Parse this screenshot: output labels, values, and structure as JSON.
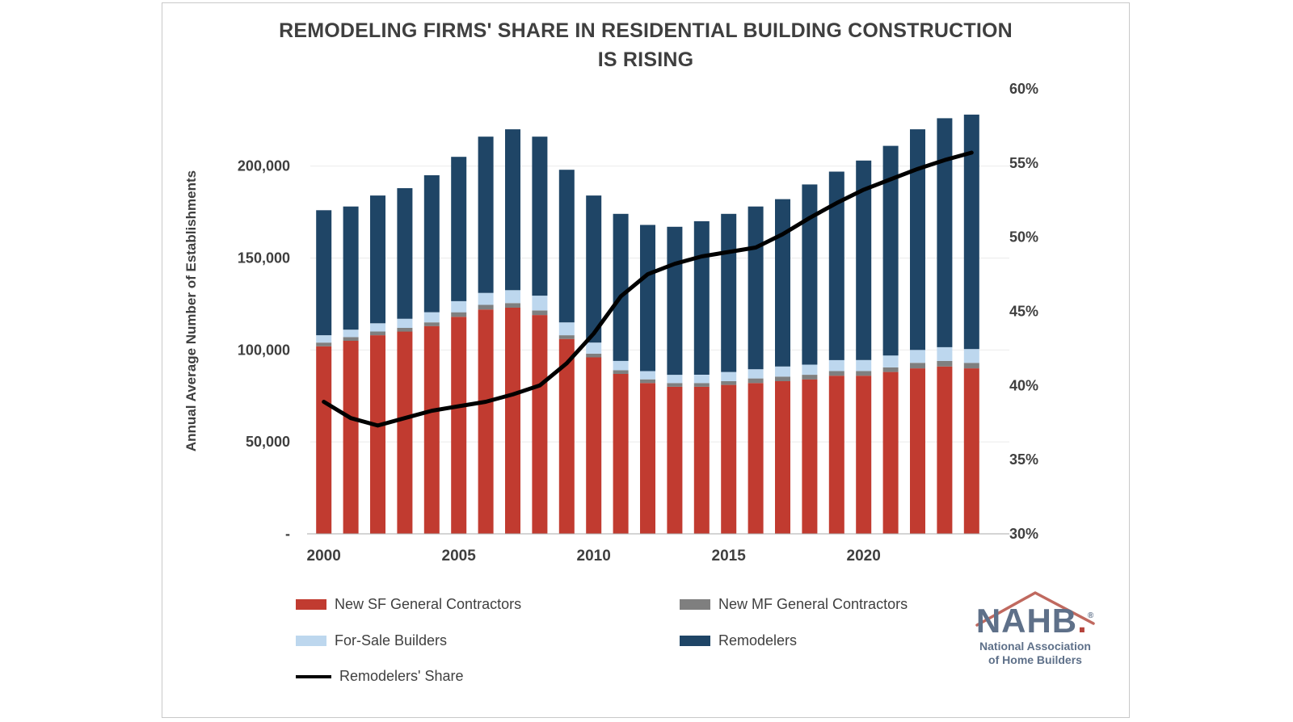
{
  "title": {
    "line1": "REMODELING FIRMS' SHARE IN RESIDENTIAL BUILDING CONSTRUCTION",
    "line2": "IS RISING"
  },
  "axes": {
    "left_label": "Annual Average Number of Establishments",
    "left_ticks": [
      {
        "value": 0,
        "label": "-"
      },
      {
        "value": 50000,
        "label": "50,000"
      },
      {
        "value": 100000,
        "label": "100,000"
      },
      {
        "value": 150000,
        "label": "150,000"
      },
      {
        "value": 200000,
        "label": "200,000"
      }
    ],
    "right_ticks": [
      {
        "value": 30,
        "label": "30%"
      },
      {
        "value": 35,
        "label": "35%"
      },
      {
        "value": 40,
        "label": "40%"
      },
      {
        "value": 45,
        "label": "45%"
      },
      {
        "value": 50,
        "label": "50%"
      },
      {
        "value": 55,
        "label": "55%"
      },
      {
        "value": 60,
        "label": "60%"
      }
    ],
    "x_ticks": [
      {
        "year": 2000,
        "label": "2000"
      },
      {
        "year": 2005,
        "label": "2005"
      },
      {
        "year": 2010,
        "label": "2010"
      },
      {
        "year": 2015,
        "label": "2015"
      },
      {
        "year": 2020,
        "label": "2020"
      }
    ]
  },
  "legend": {
    "items": [
      {
        "label": "New SF General Contractors",
        "color": "#c13b30",
        "shape": "swatch"
      },
      {
        "label": "New MF General Contractors",
        "color": "#7f7f7f",
        "shape": "swatch"
      },
      {
        "label": "For-Sale Builders",
        "color": "#bdd7ee",
        "shape": "swatch"
      },
      {
        "label": "Remodelers",
        "color": "#1f4566",
        "shape": "swatch"
      },
      {
        "label": "Remodelers' Share",
        "color": "#000000",
        "shape": "line"
      }
    ]
  },
  "logo": {
    "text": "NAHB",
    "period": ".",
    "reg": "®",
    "line1": "National Association",
    "line2": "of Home Builders"
  },
  "chart_data": {
    "type": "bar",
    "stacked": true,
    "title": "REMODELING FIRMS' SHARE IN RESIDENTIAL BUILDING CONSTRUCTION IS RISING",
    "ylabel_left": "Annual Average Number of Establishments",
    "ylim_left": [
      0,
      242000
    ],
    "ylim_right": [
      30,
      60
    ],
    "grid": "horizontal-light",
    "legend_position": "bottom",
    "x": [
      2000,
      2001,
      2002,
      2003,
      2004,
      2005,
      2006,
      2007,
      2008,
      2009,
      2010,
      2011,
      2012,
      2013,
      2014,
      2015,
      2016,
      2017,
      2018,
      2019,
      2020,
      2021,
      2022,
      2023,
      2024
    ],
    "series": [
      {
        "name": "New SF General Contractors",
        "color": "#c13b30",
        "values": [
          102000,
          105000,
          108000,
          110000,
          113000,
          118000,
          122000,
          123000,
          119000,
          106000,
          96000,
          87000,
          82000,
          80000,
          80000,
          81000,
          82000,
          83000,
          84000,
          86000,
          86000,
          88000,
          90000,
          91000,
          90000
        ]
      },
      {
        "name": "New MF General Contractors",
        "color": "#7f7f7f",
        "values": [
          2000,
          2000,
          2000,
          2000,
          2000,
          2500,
          2500,
          2500,
          2500,
          2000,
          2000,
          2000,
          2000,
          2000,
          2000,
          2000,
          2500,
          2500,
          2500,
          2500,
          2500,
          2500,
          3000,
          3000,
          3000
        ]
      },
      {
        "name": "For-Sale Builders",
        "color": "#bdd7ee",
        "values": [
          4000,
          4000,
          4500,
          5000,
          5500,
          6000,
          6500,
          7000,
          8000,
          7000,
          6000,
          5000,
          4500,
          4500,
          4500,
          5000,
          5000,
          5500,
          5500,
          6000,
          6000,
          6500,
          7000,
          7500,
          7500
        ]
      },
      {
        "name": "Remodelers",
        "color": "#1f4566",
        "values": [
          68000,
          67000,
          69500,
          71000,
          74500,
          78500,
          85000,
          87500,
          86500,
          83000,
          80000,
          80000,
          79500,
          80500,
          83500,
          86000,
          88500,
          91000,
          98000,
          102500,
          108500,
          114000,
          120000,
          124500,
          127500
        ]
      }
    ],
    "line_series": {
      "name": "Remodelers' Share",
      "color": "#000000",
      "axis": "right",
      "values": [
        38.9,
        37.8,
        37.3,
        37.8,
        38.3,
        38.6,
        38.9,
        39.4,
        40.0,
        41.5,
        43.5,
        46.0,
        47.5,
        48.2,
        48.7,
        49.0,
        49.3,
        50.2,
        51.3,
        52.3,
        53.2,
        53.9,
        54.6,
        55.2,
        55.7
      ]
    }
  }
}
